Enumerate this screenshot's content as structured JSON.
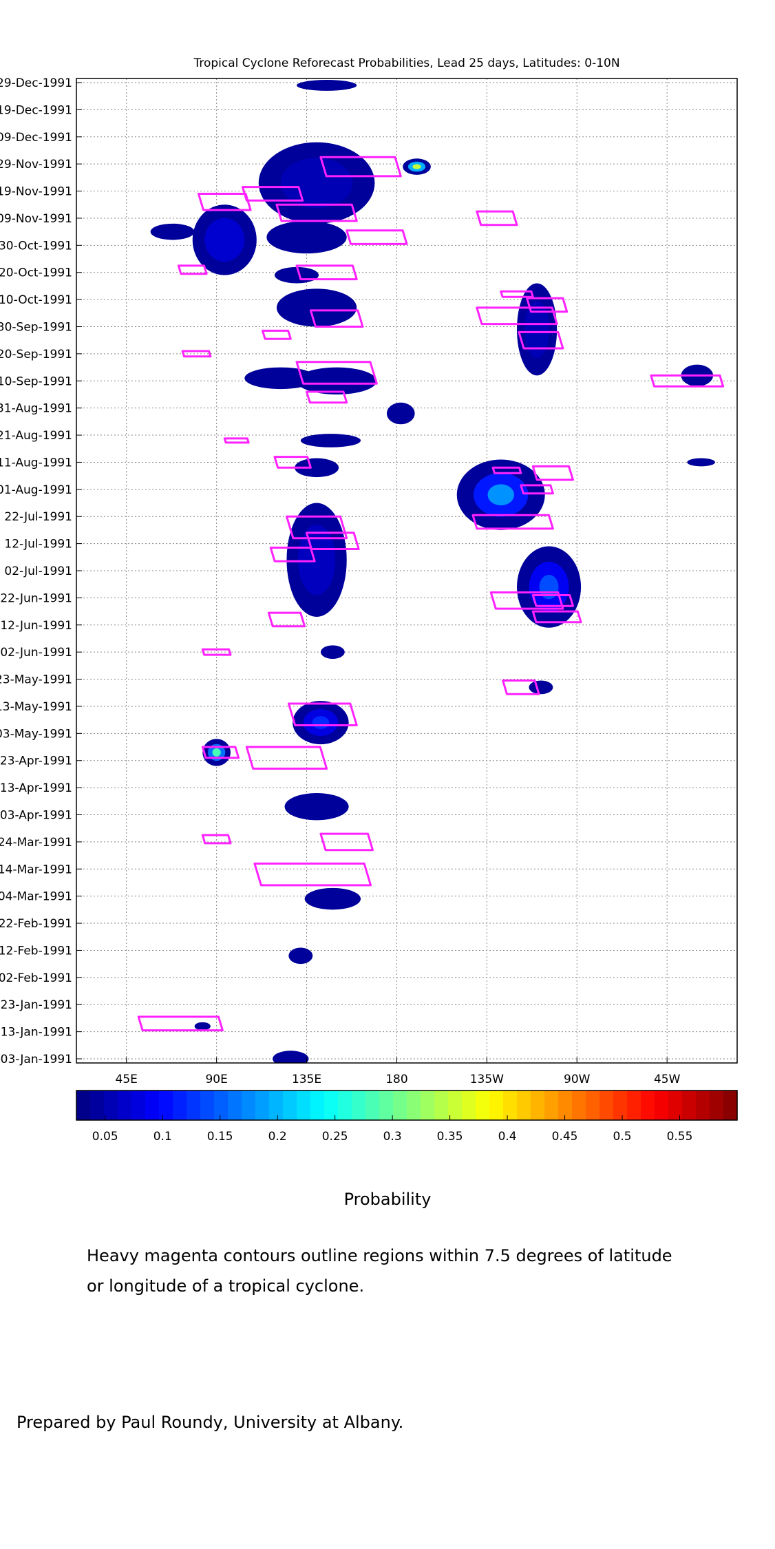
{
  "chart_data": {
    "type": "heatmap",
    "title": "Tropical Cyclone Reforecast Probabilities, Lead 25 days, Latitudes: 0-10N",
    "x_ticks": [
      "45E",
      "90E",
      "135E",
      "180",
      "135W",
      "90W",
      "45W"
    ],
    "x_range_deg_east": [
      20,
      350
    ],
    "y_ticks": [
      "03-Jan-1991",
      "13-Jan-1991",
      "23-Jan-1991",
      "02-Feb-1991",
      "12-Feb-1991",
      "22-Feb-1991",
      "04-Mar-1991",
      "14-Mar-1991",
      "24-Mar-1991",
      "03-Apr-1991",
      "13-Apr-1991",
      "23-Apr-1991",
      "03-May-1991",
      "13-May-1991",
      "23-May-1991",
      "02-Jun-1991",
      "12-Jun-1991",
      "22-Jun-1991",
      "02-Jul-1991",
      "12-Jul-1991",
      "22-Jul-1991",
      "01-Aug-1991",
      "11-Aug-1991",
      "21-Aug-1991",
      "31-Aug-1991",
      "10-Sep-1991",
      "20-Sep-1991",
      "30-Sep-1991",
      "10-Oct-1991",
      "20-Oct-1991",
      "30-Oct-1991",
      "09-Nov-1991",
      "19-Nov-1991",
      "29-Nov-1991",
      "09-Dec-1991",
      "19-Dec-1991",
      "29-Dec-1991"
    ],
    "y_range": [
      "03-Jan-1991",
      "29-Dec-1991"
    ],
    "grid": true,
    "colorbar": {
      "label": "Probability",
      "ticks": [
        "0.05",
        "0.1",
        "0.15",
        "0.2",
        "0.25",
        "0.3",
        "0.35",
        "0.4",
        "0.45",
        "0.5",
        "0.55"
      ],
      "range": [
        0.025,
        0.6
      ]
    },
    "probability_regions": [
      {
        "lon": 94,
        "date": "01-Nov-1991",
        "lon_span": 32,
        "days": 26,
        "p": 0.1
      },
      {
        "lon": 68,
        "date": "04-Nov-1991",
        "lon_span": 22,
        "days": 6,
        "p": 0.05
      },
      {
        "lon": 140,
        "date": "22-Nov-1991",
        "lon_span": 58,
        "days": 30,
        "p": 0.07
      },
      {
        "lon": 190,
        "date": "28-Nov-1991",
        "lon_span": 14,
        "days": 6,
        "p": 0.35
      },
      {
        "lon": 135,
        "date": "02-Nov-1991",
        "lon_span": 40,
        "days": 12,
        "p": 0.06
      },
      {
        "lon": 145,
        "date": "28-Dec-1991",
        "lon_span": 30,
        "days": 4,
        "p": 0.05
      },
      {
        "lon": 130,
        "date": "19-Oct-1991",
        "lon_span": 22,
        "days": 6,
        "p": 0.05
      },
      {
        "lon": 140,
        "date": "07-Oct-1991",
        "lon_span": 40,
        "days": 14,
        "p": 0.06
      },
      {
        "lon": 122,
        "date": "11-Sep-1991",
        "lon_span": 36,
        "days": 8,
        "p": 0.05
      },
      {
        "lon": 150,
        "date": "10-Sep-1991",
        "lon_span": 40,
        "days": 10,
        "p": 0.05
      },
      {
        "lon": 182,
        "date": "29-Aug-1991",
        "lon_span": 14,
        "days": 8,
        "p": 0.06
      },
      {
        "lon": 147,
        "date": "19-Aug-1991",
        "lon_span": 30,
        "days": 5,
        "p": 0.05
      },
      {
        "lon": 140,
        "date": "09-Aug-1991",
        "lon_span": 22,
        "days": 7,
        "p": 0.05
      },
      {
        "lon": 140,
        "date": "06-Jul-1991",
        "lon_span": 30,
        "days": 42,
        "p": 0.08
      },
      {
        "lon": 148,
        "date": "02-Jun-1991",
        "lon_span": 12,
        "days": 5,
        "p": 0.05
      },
      {
        "lon": 232,
        "date": "30-Jul-1991",
        "lon_span": 44,
        "days": 26,
        "p": 0.18
      },
      {
        "lon": 256,
        "date": "26-Jun-1991",
        "lon_span": 32,
        "days": 30,
        "p": 0.14
      },
      {
        "lon": 250,
        "date": "29-Sep-1991",
        "lon_span": 20,
        "days": 34,
        "p": 0.07
      },
      {
        "lon": 330,
        "date": "12-Sep-1991",
        "lon_span": 16,
        "days": 8,
        "p": 0.05
      },
      {
        "lon": 332,
        "date": "11-Aug-1991",
        "lon_span": 14,
        "days": 3,
        "p": 0.05
      },
      {
        "lon": 252,
        "date": "20-May-1991",
        "lon_span": 12,
        "days": 5,
        "p": 0.05
      },
      {
        "lon": 142,
        "date": "07-May-1991",
        "lon_span": 28,
        "days": 16,
        "p": 0.12
      },
      {
        "lon": 90,
        "date": "26-Apr-1991",
        "lon_span": 14,
        "days": 10,
        "p": 0.28
      },
      {
        "lon": 140,
        "date": "06-Apr-1991",
        "lon_span": 32,
        "days": 10,
        "p": 0.05
      },
      {
        "lon": 148,
        "date": "03-Mar-1991",
        "lon_span": 28,
        "days": 8,
        "p": 0.05
      },
      {
        "lon": 132,
        "date": "10-Feb-1991",
        "lon_span": 12,
        "days": 6,
        "p": 0.05
      },
      {
        "lon": 83,
        "date": "15-Jan-1991",
        "lon_span": 8,
        "days": 3,
        "p": 0.05
      },
      {
        "lon": 127,
        "date": "03-Jan-1991",
        "lon_span": 18,
        "days": 6,
        "p": 0.05
      }
    ],
    "cyclone_contours": [
      {
        "lon": 94,
        "date": "15-Nov-1991",
        "lon_span": 26,
        "days": 6
      },
      {
        "lon": 118,
        "date": "18-Nov-1991",
        "lon_span": 30,
        "days": 5
      },
      {
        "lon": 140,
        "date": "11-Nov-1991",
        "lon_span": 40,
        "days": 6
      },
      {
        "lon": 162,
        "date": "28-Nov-1991",
        "lon_span": 40,
        "days": 7
      },
      {
        "lon": 170,
        "date": "02-Nov-1991",
        "lon_span": 30,
        "days": 5
      },
      {
        "lon": 230,
        "date": "09-Nov-1991",
        "lon_span": 20,
        "days": 5
      },
      {
        "lon": 78,
        "date": "21-Oct-1991",
        "lon_span": 14,
        "days": 3
      },
      {
        "lon": 145,
        "date": "20-Oct-1991",
        "lon_span": 30,
        "days": 5
      },
      {
        "lon": 150,
        "date": "03-Oct-1991",
        "lon_span": 26,
        "days": 6
      },
      {
        "lon": 120,
        "date": "27-Sep-1991",
        "lon_span": 14,
        "days": 3
      },
      {
        "lon": 240,
        "date": "04-Oct-1991",
        "lon_span": 40,
        "days": 6
      },
      {
        "lon": 255,
        "date": "08-Oct-1991",
        "lon_span": 20,
        "days": 5
      },
      {
        "lon": 240,
        "date": "12-Oct-1991",
        "lon_span": 16,
        "days": 2
      },
      {
        "lon": 252,
        "date": "25-Sep-1991",
        "lon_span": 22,
        "days": 6
      },
      {
        "lon": 150,
        "date": "13-Sep-1991",
        "lon_span": 40,
        "days": 8
      },
      {
        "lon": 145,
        "date": "04-Sep-1991",
        "lon_span": 20,
        "days": 4
      },
      {
        "lon": 325,
        "date": "10-Sep-1991",
        "lon_span": 36,
        "days": 4
      },
      {
        "lon": 80,
        "date": "20-Sep-1991",
        "lon_span": 14,
        "days": 2
      },
      {
        "lon": 100,
        "date": "19-Aug-1991",
        "lon_span": 12,
        "days": 1
      },
      {
        "lon": 128,
        "date": "11-Aug-1991",
        "lon_span": 18,
        "days": 4
      },
      {
        "lon": 235,
        "date": "08-Aug-1991",
        "lon_span": 14,
        "days": 2
      },
      {
        "lon": 258,
        "date": "07-Aug-1991",
        "lon_span": 20,
        "days": 5
      },
      {
        "lon": 250,
        "date": "01-Aug-1991",
        "lon_span": 16,
        "days": 3
      },
      {
        "lon": 238,
        "date": "20-Jul-1991",
        "lon_span": 40,
        "days": 5
      },
      {
        "lon": 140,
        "date": "18-Jul-1991",
        "lon_span": 30,
        "days": 8
      },
      {
        "lon": 148,
        "date": "13-Jul-1991",
        "lon_span": 26,
        "days": 6
      },
      {
        "lon": 128,
        "date": "08-Jul-1991",
        "lon_span": 22,
        "days": 5
      },
      {
        "lon": 245,
        "date": "21-Jun-1991",
        "lon_span": 36,
        "days": 6
      },
      {
        "lon": 258,
        "date": "21-Jun-1991",
        "lon_span": 20,
        "days": 4
      },
      {
        "lon": 260,
        "date": "15-Jun-1991",
        "lon_span": 24,
        "days": 4
      },
      {
        "lon": 125,
        "date": "14-Jun-1991",
        "lon_span": 18,
        "days": 5
      },
      {
        "lon": 90,
        "date": "02-Jun-1991",
        "lon_span": 14,
        "days": 2
      },
      {
        "lon": 242,
        "date": "20-May-1991",
        "lon_span": 18,
        "days": 5
      },
      {
        "lon": 143,
        "date": "10-May-1991",
        "lon_span": 34,
        "days": 8
      },
      {
        "lon": 92,
        "date": "26-Apr-1991",
        "lon_span": 18,
        "days": 4
      },
      {
        "lon": 125,
        "date": "24-Apr-1991",
        "lon_span": 40,
        "days": 8
      },
      {
        "lon": 155,
        "date": "24-Mar-1991",
        "lon_span": 26,
        "days": 6
      },
      {
        "lon": 90,
        "date": "25-Mar-1991",
        "lon_span": 14,
        "days": 3
      },
      {
        "lon": 138,
        "date": "12-Mar-1991",
        "lon_span": 58,
        "days": 8
      },
      {
        "lon": 72,
        "date": "16-Jan-1991",
        "lon_span": 42,
        "days": 5
      }
    ]
  },
  "colors": {
    "contour": "#ff22ff",
    "grid": "#888888"
  },
  "labels": {
    "probability": "Probability",
    "contour_note_1": "Heavy magenta contours outline regions within 7.5 degrees of latitude",
    "contour_note_2": "or longitude of a tropical cyclone.",
    "credit": "Prepared by Paul Roundy, University at Albany."
  }
}
